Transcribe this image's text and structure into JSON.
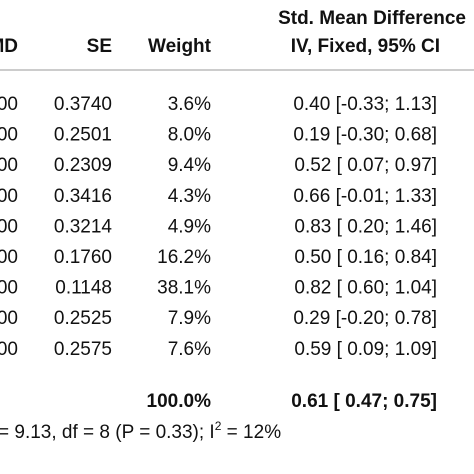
{
  "table": {
    "header": {
      "title": "Std. Mean Difference",
      "columns": [
        "MD",
        "SE",
        "Weight",
        "IV, Fixed, 95% CI"
      ]
    },
    "rows": [
      [
        "00",
        "0.3740",
        "3.6%",
        "0.40 [-0.33; 1.13]"
      ],
      [
        "00",
        "0.2501",
        "8.0%",
        "0.19 [-0.30; 0.68]"
      ],
      [
        "00",
        "0.2309",
        "9.4%",
        "0.52 [ 0.07; 0.97]"
      ],
      [
        "00",
        "0.3416",
        "4.3%",
        "0.66 [-0.01; 1.33]"
      ],
      [
        "00",
        "0.3214",
        "4.9%",
        "0.83 [ 0.20; 1.46]"
      ],
      [
        "00",
        "0.1760",
        "16.2%",
        "0.50 [ 0.16; 0.84]"
      ],
      [
        "00",
        "0.1148",
        "38.1%",
        "0.82 [ 0.60; 1.04]"
      ],
      [
        "00",
        "0.2525",
        "7.9%",
        "0.29 [-0.20; 0.78]"
      ],
      [
        "00",
        "0.2575",
        "7.6%",
        "0.59 [ 0.09; 1.09]"
      ]
    ],
    "total": {
      "weight": "100.0%",
      "estimate": "0.61 [ 0.47; 0.75]"
    },
    "footer": [
      "= 9.13, df = 8 (P = 0.33); I",
      "2",
      " = 12%"
    ]
  }
}
